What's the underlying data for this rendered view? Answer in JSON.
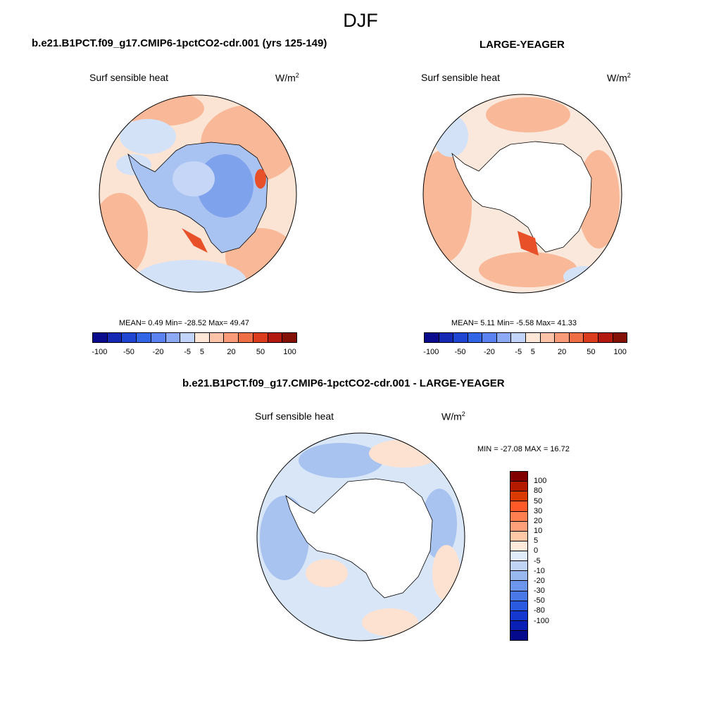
{
  "title": "DJF",
  "panels": [
    {
      "title": "b.e21.B1PCT.f09_g17.CMIP6-1pctCO2-cdr.001 (yrs 125-149)",
      "variable": "Surf sensible heat",
      "units": "W/m",
      "units_sup": "2",
      "stats": "MEAN=   0.49  Min= -28.52  Max=  49.47"
    },
    {
      "title": "LARGE-YEAGER",
      "variable": "Surf sensible heat",
      "units": "W/m",
      "units_sup": "2",
      "stats": "MEAN=   5.11  Min=  -5.58  Max=  41.33"
    },
    {
      "title": "b.e21.B1PCT.f09_g17.CMIP6-1pctCO2-cdr.001 - LARGE-YEAGER",
      "variable": "Surf sensible heat",
      "units": "W/m",
      "units_sup": "2",
      "stats": "MIN = -27.08 MAX =  16.72"
    }
  ],
  "colorbar_main": {
    "colors": [
      "#0a0a8c",
      "#1428b4",
      "#1e46d2",
      "#3264e6",
      "#5a82f0",
      "#8caaf5",
      "#c3d4fa",
      "#ffe6d7",
      "#fcc3a8",
      "#f99b78",
      "#f06e46",
      "#dc3c1e",
      "#b4190f",
      "#821005"
    ],
    "labels": [
      "-100",
      "-50",
      "-20",
      "-5",
      "5",
      "20",
      "50",
      "100"
    ]
  },
  "colorbar_diff": {
    "colors": [
      "#800000",
      "#b31a00",
      "#d93a00",
      "#ff5a28",
      "#ff7f50",
      "#ffa07a",
      "#ffc9a8",
      "#ffeadb",
      "#e0ecfa",
      "#c0d4f5",
      "#9ab8f0",
      "#6d95eb",
      "#4a78e6",
      "#2a5ae0",
      "#1438d0",
      "#0a20b4",
      "#050a8c"
    ],
    "labels": [
      "100",
      "80",
      "50",
      "30",
      "20",
      "10",
      "5",
      "0",
      "-5",
      "-10",
      "-20",
      "-30",
      "-50",
      "-80",
      "-100"
    ]
  },
  "maps": {
    "ocean_a": "#fce4d4",
    "ocean_b": "#fbe8dc",
    "warm_patch": "#f9b898",
    "strong_warm": "#e8502a",
    "cool_patch": "#d4e2f8",
    "ice_a": "#a8c2f2",
    "ice_b": "#7fa2ec",
    "ice_c": "#c6d6f7",
    "diff_ocean": "#d8e6f8",
    "diff_cool": "#a9c3f0",
    "diff_warm": "#fde2d2"
  }
}
